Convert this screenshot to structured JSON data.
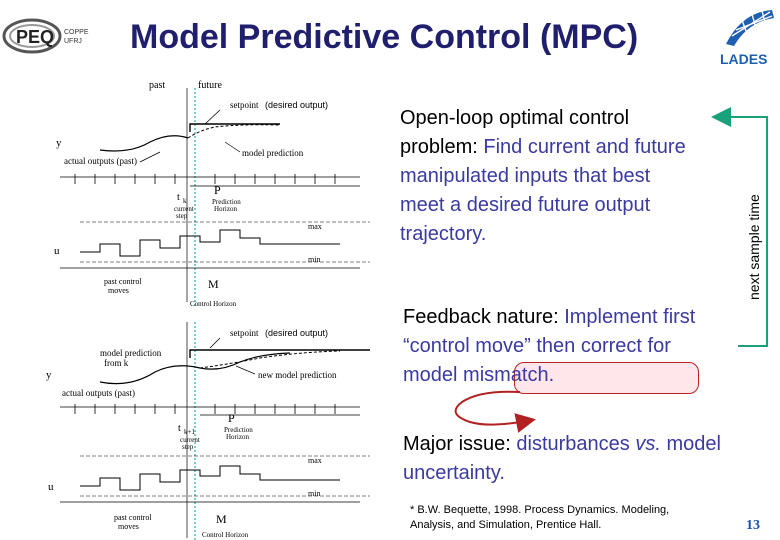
{
  "header": {
    "title": "Model Predictive Control (MPC)",
    "left_logo": {
      "text": "PEQ",
      "sub1": "COPPE",
      "sub2": "UFRJ"
    },
    "right_logo": {
      "text": "LADES"
    }
  },
  "body": {
    "point1_label": "Open-loop optimal control problem:",
    "point1_text": "Find current and future manipulated inputs that best meet a desired future output trajectory.",
    "point2_label": "Feedback nature:",
    "point2_text_a": "Implement first “control move” then correct for ",
    "point2_text_b": "model mismatch",
    "point2_text_c": ".",
    "point3_label": "Major issue:",
    "point3_text_a": "disturbances ",
    "point3_vs": "vs.",
    "point3_text_b": "model uncertainty.",
    "reference": "* B.W. Bequette, 1998. Process Dynamics. Modeling, Analysis, and Simulation, Prentice Hall.",
    "side_label": "next sample time",
    "page_number": "13"
  },
  "figure_top": {
    "past": "past",
    "future": "future",
    "setpoint": "setpoint",
    "desired_output": "(desired output)",
    "y": "y",
    "actual_outputs": "actual outputs (past)",
    "model_prediction": "model prediction",
    "t_k": "t",
    "k": "k",
    "current_step": "current",
    "step": "step",
    "P": "P",
    "prediction": "Prediction",
    "horizon": "Horizon",
    "max": "max",
    "min": "min",
    "u": "u",
    "past_control": "past control",
    "moves": "moves",
    "M": "M",
    "control_horizon": "Control Horizon"
  },
  "figure_bottom": {
    "setpoint": "setpoint",
    "desired_output": "(desired output)",
    "model_prediction_from_k": "model prediction",
    "from_k": "from k",
    "y": "y",
    "new_model_prediction": "new model prediction",
    "actual_outputs": "actual outputs (past)",
    "t_k1": "t",
    "k1": "k+1",
    "current_step": "current",
    "step": "step",
    "P": "P",
    "prediction": "Prediction",
    "horizon": "Horizon",
    "max": "max",
    "min": "min",
    "u": "u",
    "past_control": "past control",
    "moves": "moves",
    "M": "M",
    "control_horizon": "Control Horizon"
  },
  "colors": {
    "title": "#1f1f6e",
    "accent_blue": "#3a3aa0",
    "arrow_green": "#1aa07a",
    "mismatch_red": "#b22222",
    "page_number": "#1a4fb0"
  }
}
